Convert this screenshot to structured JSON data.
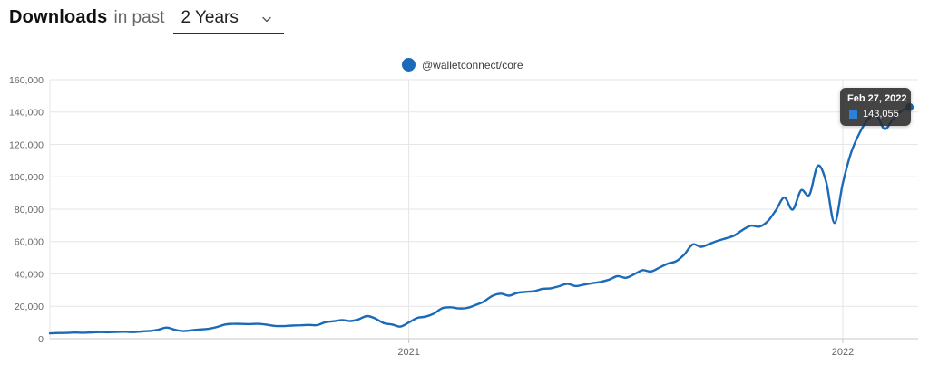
{
  "header": {
    "title": "Downloads",
    "suffix": "in past",
    "range_value": "2 Years"
  },
  "legend": {
    "label": "@walletconnect/core"
  },
  "tooltip": {
    "date": "Feb 27, 2022",
    "value": "143,055"
  },
  "colors": {
    "accent": "#1a6ab8",
    "tooltip_marker": "#2b80d9",
    "tooltip_bg": "rgba(42,42,42,0.88)",
    "grid": "#e6e6e6",
    "axis": "#c9c9c9",
    "tick_label": "#666666"
  },
  "chart_data": {
    "type": "line",
    "title": "Downloads in past 2 Years",
    "xlabel": "",
    "ylabel": "",
    "ylim": [
      0,
      160000
    ],
    "grid": true,
    "legend_position": "top-center",
    "y_ticks": [
      0,
      20000,
      40000,
      60000,
      80000,
      100000,
      120000,
      140000,
      160000
    ],
    "x_ticks": [
      {
        "index": 43,
        "label": "2021"
      },
      {
        "index": 95,
        "label": "2022"
      }
    ],
    "series": [
      {
        "name": "@walletconnect/core",
        "color": "#1a6ab8",
        "cadence": "weekly",
        "values": [
          3300,
          3500,
          3600,
          3800,
          3700,
          3900,
          4100,
          4000,
          4200,
          4300,
          4100,
          4500,
          4800,
          5600,
          6900,
          5500,
          4700,
          5200,
          5700,
          6100,
          7200,
          8800,
          9200,
          9100,
          9000,
          9200,
          8600,
          7900,
          7800,
          8100,
          8300,
          8500,
          8400,
          10200,
          10800,
          11500,
          10900,
          12000,
          14000,
          12400,
          9600,
          8800,
          7500,
          10000,
          12800,
          13600,
          15500,
          18800,
          19400,
          18700,
          19000,
          20800,
          23000,
          26400,
          27800,
          26600,
          28300,
          28900,
          29300,
          30800,
          31100,
          32400,
          33900,
          32500,
          33400,
          34300,
          35100,
          36500,
          38600,
          37600,
          39800,
          42300,
          41500,
          43800,
          46300,
          47800,
          52000,
          58200,
          56800,
          58500,
          60500,
          62000,
          63800,
          67200,
          69800,
          69200,
          72500,
          79500,
          87200,
          79800,
          91700,
          88900,
          106800,
          97000,
          71500,
          96000,
          115000,
          127000,
          135500,
          138500,
          129500,
          135500,
          140500,
          143055
        ]
      }
    ],
    "last_point": {
      "date": "Feb 27, 2022",
      "value": 143055,
      "marked": true
    }
  }
}
